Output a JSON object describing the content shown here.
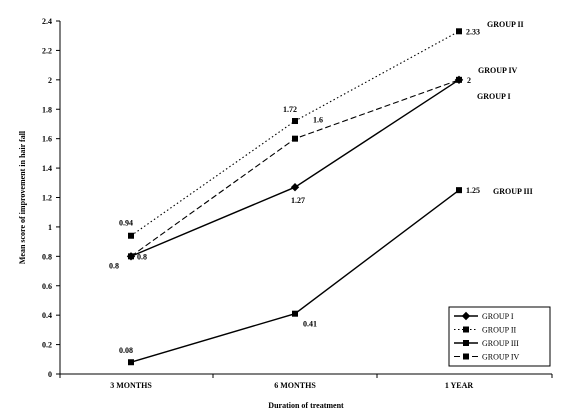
{
  "chart_data": {
    "type": "line",
    "xlabel": "Duration of treatment",
    "ylabel": "Mean score of improvement in hair fall",
    "categories": [
      "3 MONTHS",
      "6 MONTHS",
      "1 YEAR"
    ],
    "ylim": [
      0,
      2.4
    ],
    "yticks": [
      "0",
      "0.2",
      "0.4",
      "0.6",
      "0.8",
      "1",
      "1.2",
      "1.4",
      "1.6",
      "1.8",
      "2",
      "2.2",
      "2.4"
    ],
    "grid": false,
    "legend_position": "bottom-right",
    "series": [
      {
        "name": "GROUP I",
        "values": [
          0.8,
          1.27,
          2
        ],
        "labels": [
          "0.8",
          "1.27",
          "2"
        ],
        "marker": "diamond",
        "line": "solid"
      },
      {
        "name": "GROUP II",
        "values": [
          0.94,
          1.72,
          2.33
        ],
        "labels": [
          "0.94",
          "1.72",
          "2.33"
        ],
        "marker": "square",
        "line": "dotted"
      },
      {
        "name": "GROUP III",
        "values": [
          0.08,
          0.41,
          1.25
        ],
        "labels": [
          "0.08",
          "0.41",
          "1.25"
        ],
        "marker": "square",
        "line": "solid"
      },
      {
        "name": "GROUP IV",
        "values": [
          0.8,
          1.6,
          2
        ],
        "labels": [
          "0.8",
          "1.6",
          ""
        ],
        "marker": "square",
        "line": "dashed"
      }
    ]
  }
}
